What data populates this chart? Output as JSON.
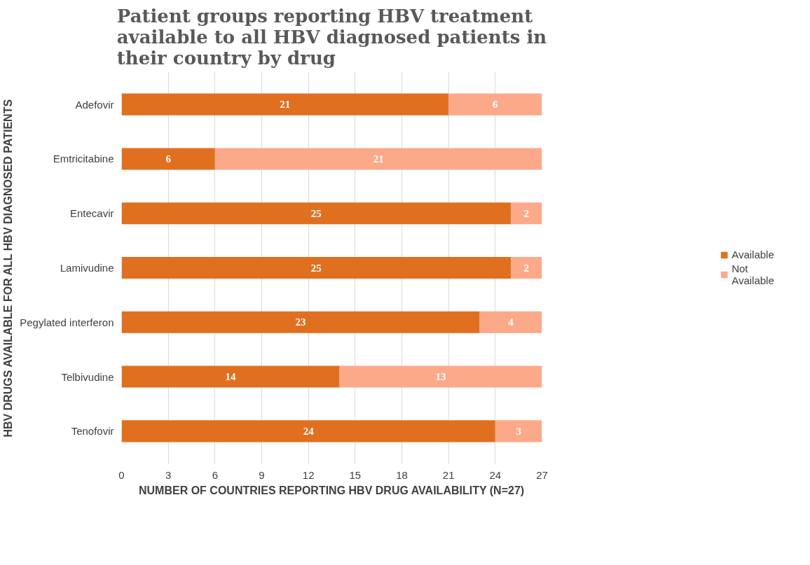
{
  "chart_data": {
    "type": "bar",
    "orientation": "horizontal",
    "stacked": true,
    "title": "Patient groups reporting HBV treatment available to all HBV diagnosed patients in their country by drug",
    "xlabel": "NUMBER OF COUNTRIES REPORTING HBV DRUG AVAILABILITY (N=27)",
    "ylabel": "HBV DRUGS AVAILABLE FOR ALL HBV DIAGNOSED PATIENTS",
    "categories": [
      "Adefovir",
      "Emtricitabine",
      "Entecavir",
      "Lamivudine",
      "Pegylated interferon",
      "Telbivudine",
      "Tenofovir"
    ],
    "series": [
      {
        "name": "Available",
        "color": "#e07020",
        "values": [
          21,
          6,
          25,
          25,
          23,
          14,
          24
        ]
      },
      {
        "name": "Not Available",
        "color": "#fca98a",
        "values": [
          6,
          21,
          2,
          2,
          4,
          13,
          3
        ]
      }
    ],
    "xlim": [
      0,
      27
    ],
    "xticks": [
      0,
      3,
      6,
      9,
      12,
      15,
      18,
      21,
      24,
      27
    ],
    "grid": "x",
    "legend": "right",
    "data_labels": true
  }
}
